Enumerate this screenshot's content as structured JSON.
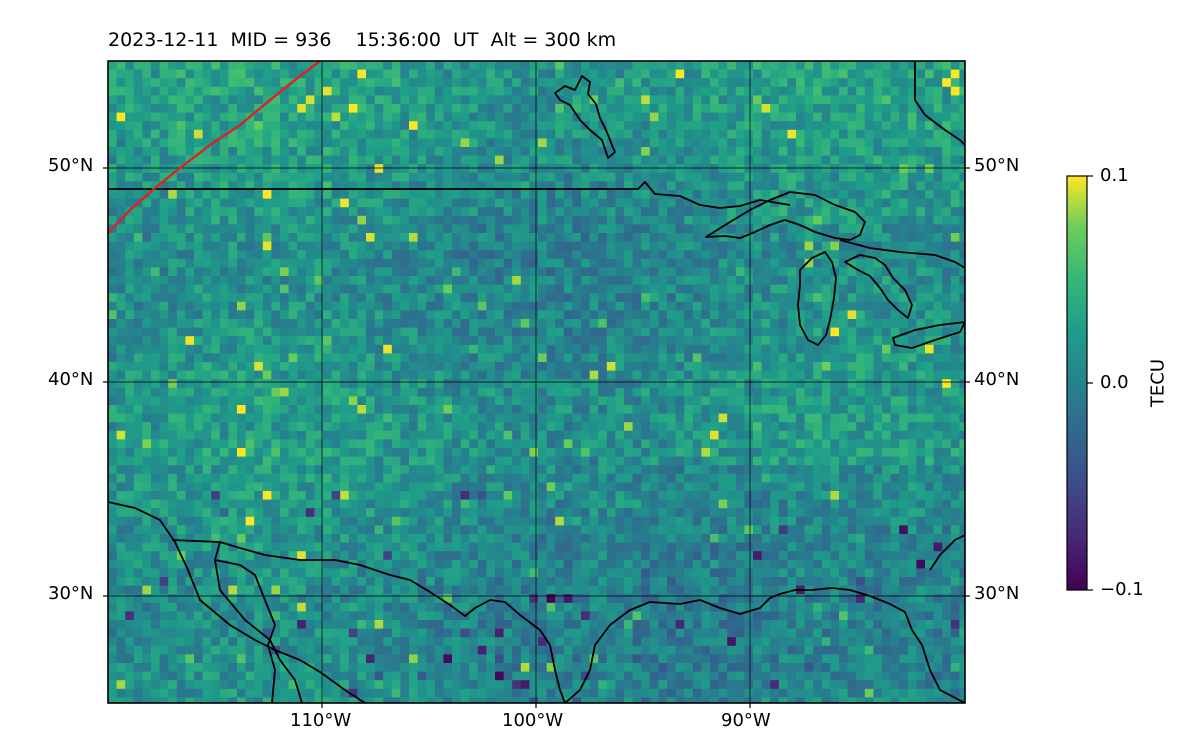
{
  "figure": {
    "date": "2023-12-11",
    "mid_text": "MID = 936",
    "time_text": "15:36:00  UT",
    "alt_text": "Alt = 300 km"
  },
  "map": {
    "projection": "plate carree",
    "lon_range": [
      -120,
      -80
    ],
    "lat_range": [
      25,
      55
    ],
    "lat_ticks": [
      {
        "value": 30,
        "label": "30°N"
      },
      {
        "value": 40,
        "label": "40°N"
      },
      {
        "value": 50,
        "label": "50°N"
      }
    ],
    "lon_ticks": [
      {
        "value": -110,
        "label": "110°W"
      },
      {
        "value": -100,
        "label": "100°W"
      },
      {
        "value": -90,
        "label": "90°W"
      }
    ],
    "grid": true,
    "field": "detrended TEC (pixelated)",
    "terminator_color": "#d62728",
    "coastline_color": "#000000"
  },
  "colorbar": {
    "label": "TECU",
    "min": -0.1,
    "max": 0.1,
    "ticks": [
      "0.1",
      "0.0",
      "−0.1"
    ],
    "colormap": "viridis"
  }
}
